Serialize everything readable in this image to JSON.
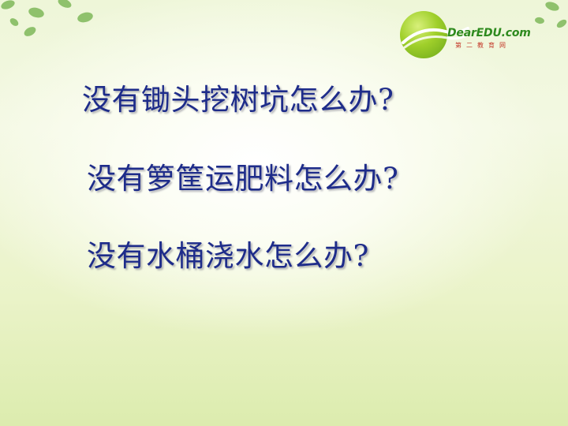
{
  "logo": {
    "brand": "DearEDU.com",
    "subtitle": "第二教育网"
  },
  "questions": [
    "没有锄头挖树坑怎么办?",
    "没有箩筐运肥料怎么办?",
    "没有水桶浇水怎么办?"
  ],
  "colors": {
    "question_text": "#1e2c8a",
    "leaf": "#7fb85a",
    "logo_green": "#2e8a1e"
  }
}
